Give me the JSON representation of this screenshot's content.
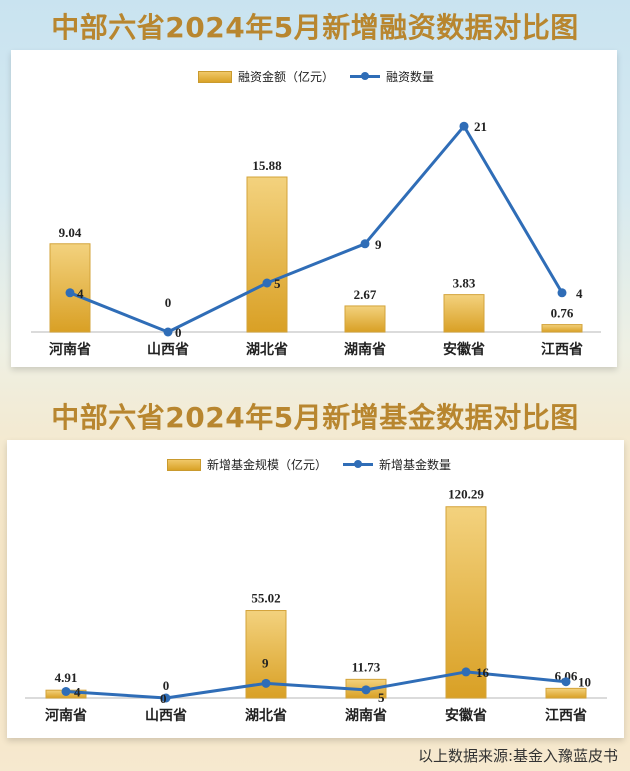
{
  "chart_data": [
    {
      "type": "bar+line",
      "title": "中部六省2024年5月新增融资数据对比图",
      "categories": [
        "河南省",
        "山西省",
        "湖北省",
        "湖南省",
        "安徽省",
        "江西省"
      ],
      "series": [
        {
          "name": "融资金额（亿元）",
          "type": "bar",
          "values": [
            9.04,
            0,
            15.88,
            2.67,
            3.83,
            0.76
          ],
          "labels": [
            "9.04",
            "0",
            "15.88",
            "2.67",
            "3.83",
            "0.76"
          ]
        },
        {
          "name": "融资数量",
          "type": "line",
          "values": [
            4,
            0,
            5,
            9,
            21,
            4
          ],
          "labels": [
            "4",
            "0",
            "5",
            "9",
            "21",
            "4"
          ]
        }
      ],
      "legend_position": "top",
      "grid": false,
      "colors": {
        "bar": "#e2ae3c",
        "line": "#2f6db7"
      }
    },
    {
      "type": "bar+line",
      "title": "中部六省2024年5月新增基金数据对比图",
      "categories": [
        "河南省",
        "山西省",
        "湖北省",
        "湖南省",
        "安徽省",
        "江西省"
      ],
      "series": [
        {
          "name": "新增基金规模（亿元）",
          "type": "bar",
          "values": [
            4.91,
            0,
            55.02,
            11.73,
            120.29,
            6.06
          ],
          "labels": [
            "4.91",
            "0",
            "55.02",
            "11.73",
            "120.29",
            "6.06"
          ]
        },
        {
          "name": "新增基金数量",
          "type": "line",
          "values": [
            4,
            0,
            9,
            5,
            16,
            10
          ],
          "labels": [
            "4",
            "0",
            "9",
            "5",
            "16",
            "10"
          ]
        }
      ],
      "legend_position": "top",
      "grid": false,
      "colors": {
        "bar": "#e2ae3c",
        "line": "#2f6db7"
      }
    }
  ],
  "chart1": {
    "title": "中部六省2024年5月新增融资数据对比图",
    "legend_bar": "融资金额（亿元）",
    "legend_line": "融资数量"
  },
  "chart2": {
    "title": "中部六省2024年5月新增基金数据对比图",
    "legend_bar": "新增基金规模（亿元）",
    "legend_line": "新增基金数量"
  },
  "source": "以上数据来源:基金入豫蓝皮书"
}
